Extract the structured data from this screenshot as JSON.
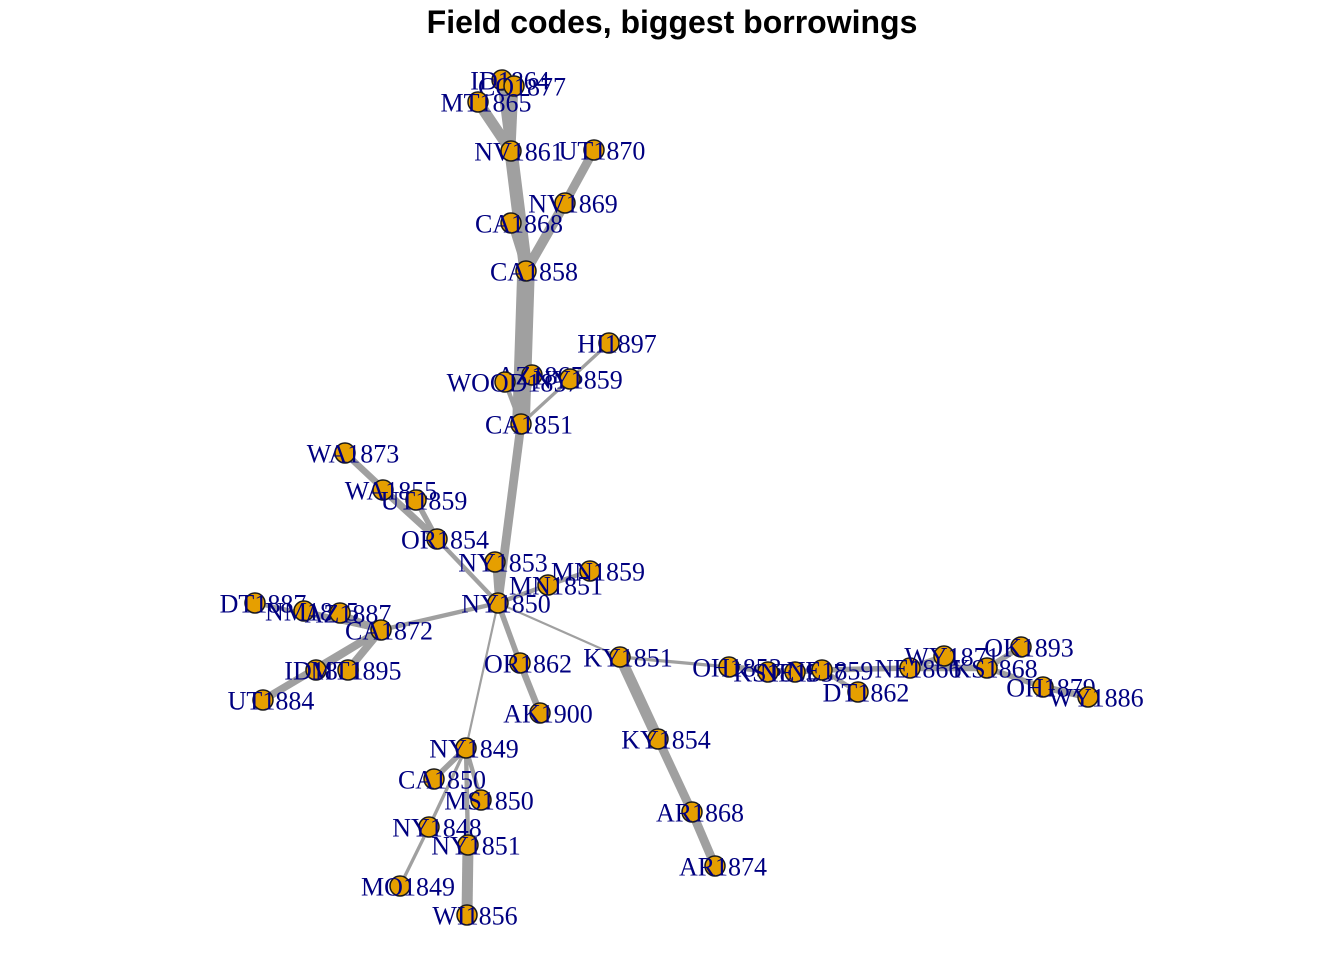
{
  "title": "Field codes, biggest borrowings",
  "colors": {
    "node_fill": "#e69f00",
    "node_stroke": "#1a1a1a",
    "label": "#000080",
    "edge": "#a0a0a0"
  },
  "nodes": [
    {
      "id": "ID1864",
      "label": "ID1864"
    },
    {
      "id": "CO1877",
      "label": "CO1877"
    },
    {
      "id": "MT1865",
      "label": "MT1865"
    },
    {
      "id": "NV1861",
      "label": "NV1861"
    },
    {
      "id": "UT1870",
      "label": "UT1870"
    },
    {
      "id": "NV1869",
      "label": "NV1869"
    },
    {
      "id": "CA1868",
      "label": "CA1868"
    },
    {
      "id": "CA1858",
      "label": "CA1858"
    },
    {
      "id": "HI1897",
      "label": "HI1897"
    },
    {
      "id": "AZ1865",
      "label": "AZ1865"
    },
    {
      "id": "WOOD1857",
      "label": "WOOD1857"
    },
    {
      "id": "NY1859",
      "label": "NY1859"
    },
    {
      "id": "CA1851",
      "label": "CA1851"
    },
    {
      "id": "WA1873",
      "label": "WA1873"
    },
    {
      "id": "WA1855",
      "label": "WA1855"
    },
    {
      "id": "UT1859",
      "label": "UT1859"
    },
    {
      "id": "OR1854",
      "label": "OR1854"
    },
    {
      "id": "NY1853",
      "label": "NY1853"
    },
    {
      "id": "MN1859",
      "label": "MN1859"
    },
    {
      "id": "MN1851",
      "label": "MN1851"
    },
    {
      "id": "NY1850",
      "label": "NY1850"
    },
    {
      "id": "DT1887",
      "label": "DT1887"
    },
    {
      "id": "NM1865",
      "label": "NM1865"
    },
    {
      "id": "AZ1887",
      "label": "AZ1887"
    },
    {
      "id": "CA1872",
      "label": "CA1872"
    },
    {
      "id": "ID1881",
      "label": "ID1881"
    },
    {
      "id": "MT1895",
      "label": "MT1895"
    },
    {
      "id": "UT1884",
      "label": "UT1884"
    },
    {
      "id": "OR1862",
      "label": "OR1862"
    },
    {
      "id": "AK1900",
      "label": "AK1900"
    },
    {
      "id": "KY1851",
      "label": "KY1851"
    },
    {
      "id": "KY1854",
      "label": "KY1854"
    },
    {
      "id": "AR1868",
      "label": "AR1868"
    },
    {
      "id": "AR1874",
      "label": "AR1874"
    },
    {
      "id": "NY1849",
      "label": "NY1849"
    },
    {
      "id": "CA1850",
      "label": "CA1850"
    },
    {
      "id": "MS1850",
      "label": "MS1850"
    },
    {
      "id": "NY1848",
      "label": "NY1848"
    },
    {
      "id": "NY1851",
      "label": "NY1851"
    },
    {
      "id": "MO1849",
      "label": "MO1849"
    },
    {
      "id": "WI1856",
      "label": "WI1856"
    },
    {
      "id": "OH1853",
      "label": "OH1853"
    },
    {
      "id": "KS1859",
      "label": "KS1859"
    },
    {
      "id": "NE1857",
      "label": "NE1857"
    },
    {
      "id": "NE1859",
      "label": "NE1859"
    },
    {
      "id": "DT1862",
      "label": "DT1862"
    },
    {
      "id": "NE1866",
      "label": "NE1866"
    },
    {
      "id": "WY1871",
      "label": "WY1871"
    },
    {
      "id": "KS1868",
      "label": "KS1868"
    },
    {
      "id": "OK1893",
      "label": "OK1893"
    },
    {
      "id": "OH1879",
      "label": "OH1879"
    },
    {
      "id": "WY1886",
      "label": "WY1886"
    }
  ],
  "edges": [
    {
      "from": "MT1865",
      "to": "NV1861",
      "weight": 10
    },
    {
      "from": "ID1864",
      "to": "NV1861",
      "weight": 9
    },
    {
      "from": "CO1877",
      "to": "NV1861",
      "weight": 8
    },
    {
      "from": "NV1861",
      "to": "CA1858",
      "weight": 12
    },
    {
      "from": "UT1870",
      "to": "NV1869",
      "weight": 8
    },
    {
      "from": "NV1869",
      "to": "CA1858",
      "weight": 9
    },
    {
      "from": "CA1868",
      "to": "CA1858",
      "weight": 6
    },
    {
      "from": "CA1858",
      "to": "CA1851",
      "weight": 16
    },
    {
      "from": "HI1897",
      "to": "NY1859",
      "weight": 3
    },
    {
      "from": "NY1859",
      "to": "CA1851",
      "weight": 3
    },
    {
      "from": "AZ1865",
      "to": "CA1851",
      "weight": 4
    },
    {
      "from": "WOOD1857",
      "to": "CA1851",
      "weight": 4
    },
    {
      "from": "CA1851",
      "to": "NY1850",
      "weight": 8
    },
    {
      "from": "WA1873",
      "to": "OR1854",
      "weight": 6
    },
    {
      "from": "WA1855",
      "to": "OR1854",
      "weight": 6
    },
    {
      "from": "UT1859",
      "to": "OR1854",
      "weight": 5
    },
    {
      "from": "OR1854",
      "to": "NY1850",
      "weight": 4
    },
    {
      "from": "NY1853",
      "to": "NY1850",
      "weight": 5
    },
    {
      "from": "MN1859",
      "to": "MN1851",
      "weight": 4
    },
    {
      "from": "MN1851",
      "to": "NY1850",
      "weight": 4
    },
    {
      "from": "DT1887",
      "to": "CA1872",
      "weight": 4
    },
    {
      "from": "NM1865",
      "to": "CA1872",
      "weight": 5
    },
    {
      "from": "AZ1887",
      "to": "CA1872",
      "weight": 5
    },
    {
      "from": "ID1881",
      "to": "CA1872",
      "weight": 7
    },
    {
      "from": "MT1895",
      "to": "CA1872",
      "weight": 7
    },
    {
      "from": "UT1884",
      "to": "CA1872",
      "weight": 7
    },
    {
      "from": "CA1872",
      "to": "NY1850",
      "weight": 4
    },
    {
      "from": "OR1862",
      "to": "NY1850",
      "weight": 5
    },
    {
      "from": "AK1900",
      "to": "OR1862",
      "weight": 6
    },
    {
      "from": "KY1851",
      "to": "NY1850",
      "weight": 2
    },
    {
      "from": "KY1854",
      "to": "KY1851",
      "weight": 10
    },
    {
      "from": "AR1868",
      "to": "KY1854",
      "weight": 8
    },
    {
      "from": "AR1874",
      "to": "AR1868",
      "weight": 8
    },
    {
      "from": "NY1849",
      "to": "NY1850",
      "weight": 2
    },
    {
      "from": "CA1850",
      "to": "NY1849",
      "weight": 5
    },
    {
      "from": "MS1850",
      "to": "NY1849",
      "weight": 4
    },
    {
      "from": "NY1851",
      "to": "NY1849",
      "weight": 4
    },
    {
      "from": "NY1848",
      "to": "NY1849",
      "weight": 3
    },
    {
      "from": "MO1849",
      "to": "NY1848",
      "weight": 3
    },
    {
      "from": "WI1856",
      "to": "NY1851",
      "weight": 10
    },
    {
      "from": "OH1853",
      "to": "KY1851",
      "weight": 3
    },
    {
      "from": "KS1859",
      "to": "OH1853",
      "weight": 4
    },
    {
      "from": "NE1857",
      "to": "OH1853",
      "weight": 5
    },
    {
      "from": "NE1859",
      "to": "NE1857",
      "weight": 5
    },
    {
      "from": "DT1862",
      "to": "NE1859",
      "weight": 4
    },
    {
      "from": "NE1866",
      "to": "NE1859",
      "weight": 5
    },
    {
      "from": "WY1871",
      "to": "NE1866",
      "weight": 5
    },
    {
      "from": "KS1868",
      "to": "NE1866",
      "weight": 6
    },
    {
      "from": "OK1893",
      "to": "KS1868",
      "weight": 5
    },
    {
      "from": "OH1879",
      "to": "KS1868",
      "weight": 5
    },
    {
      "from": "WY1886",
      "to": "OH1879",
      "weight": 6
    }
  ]
}
